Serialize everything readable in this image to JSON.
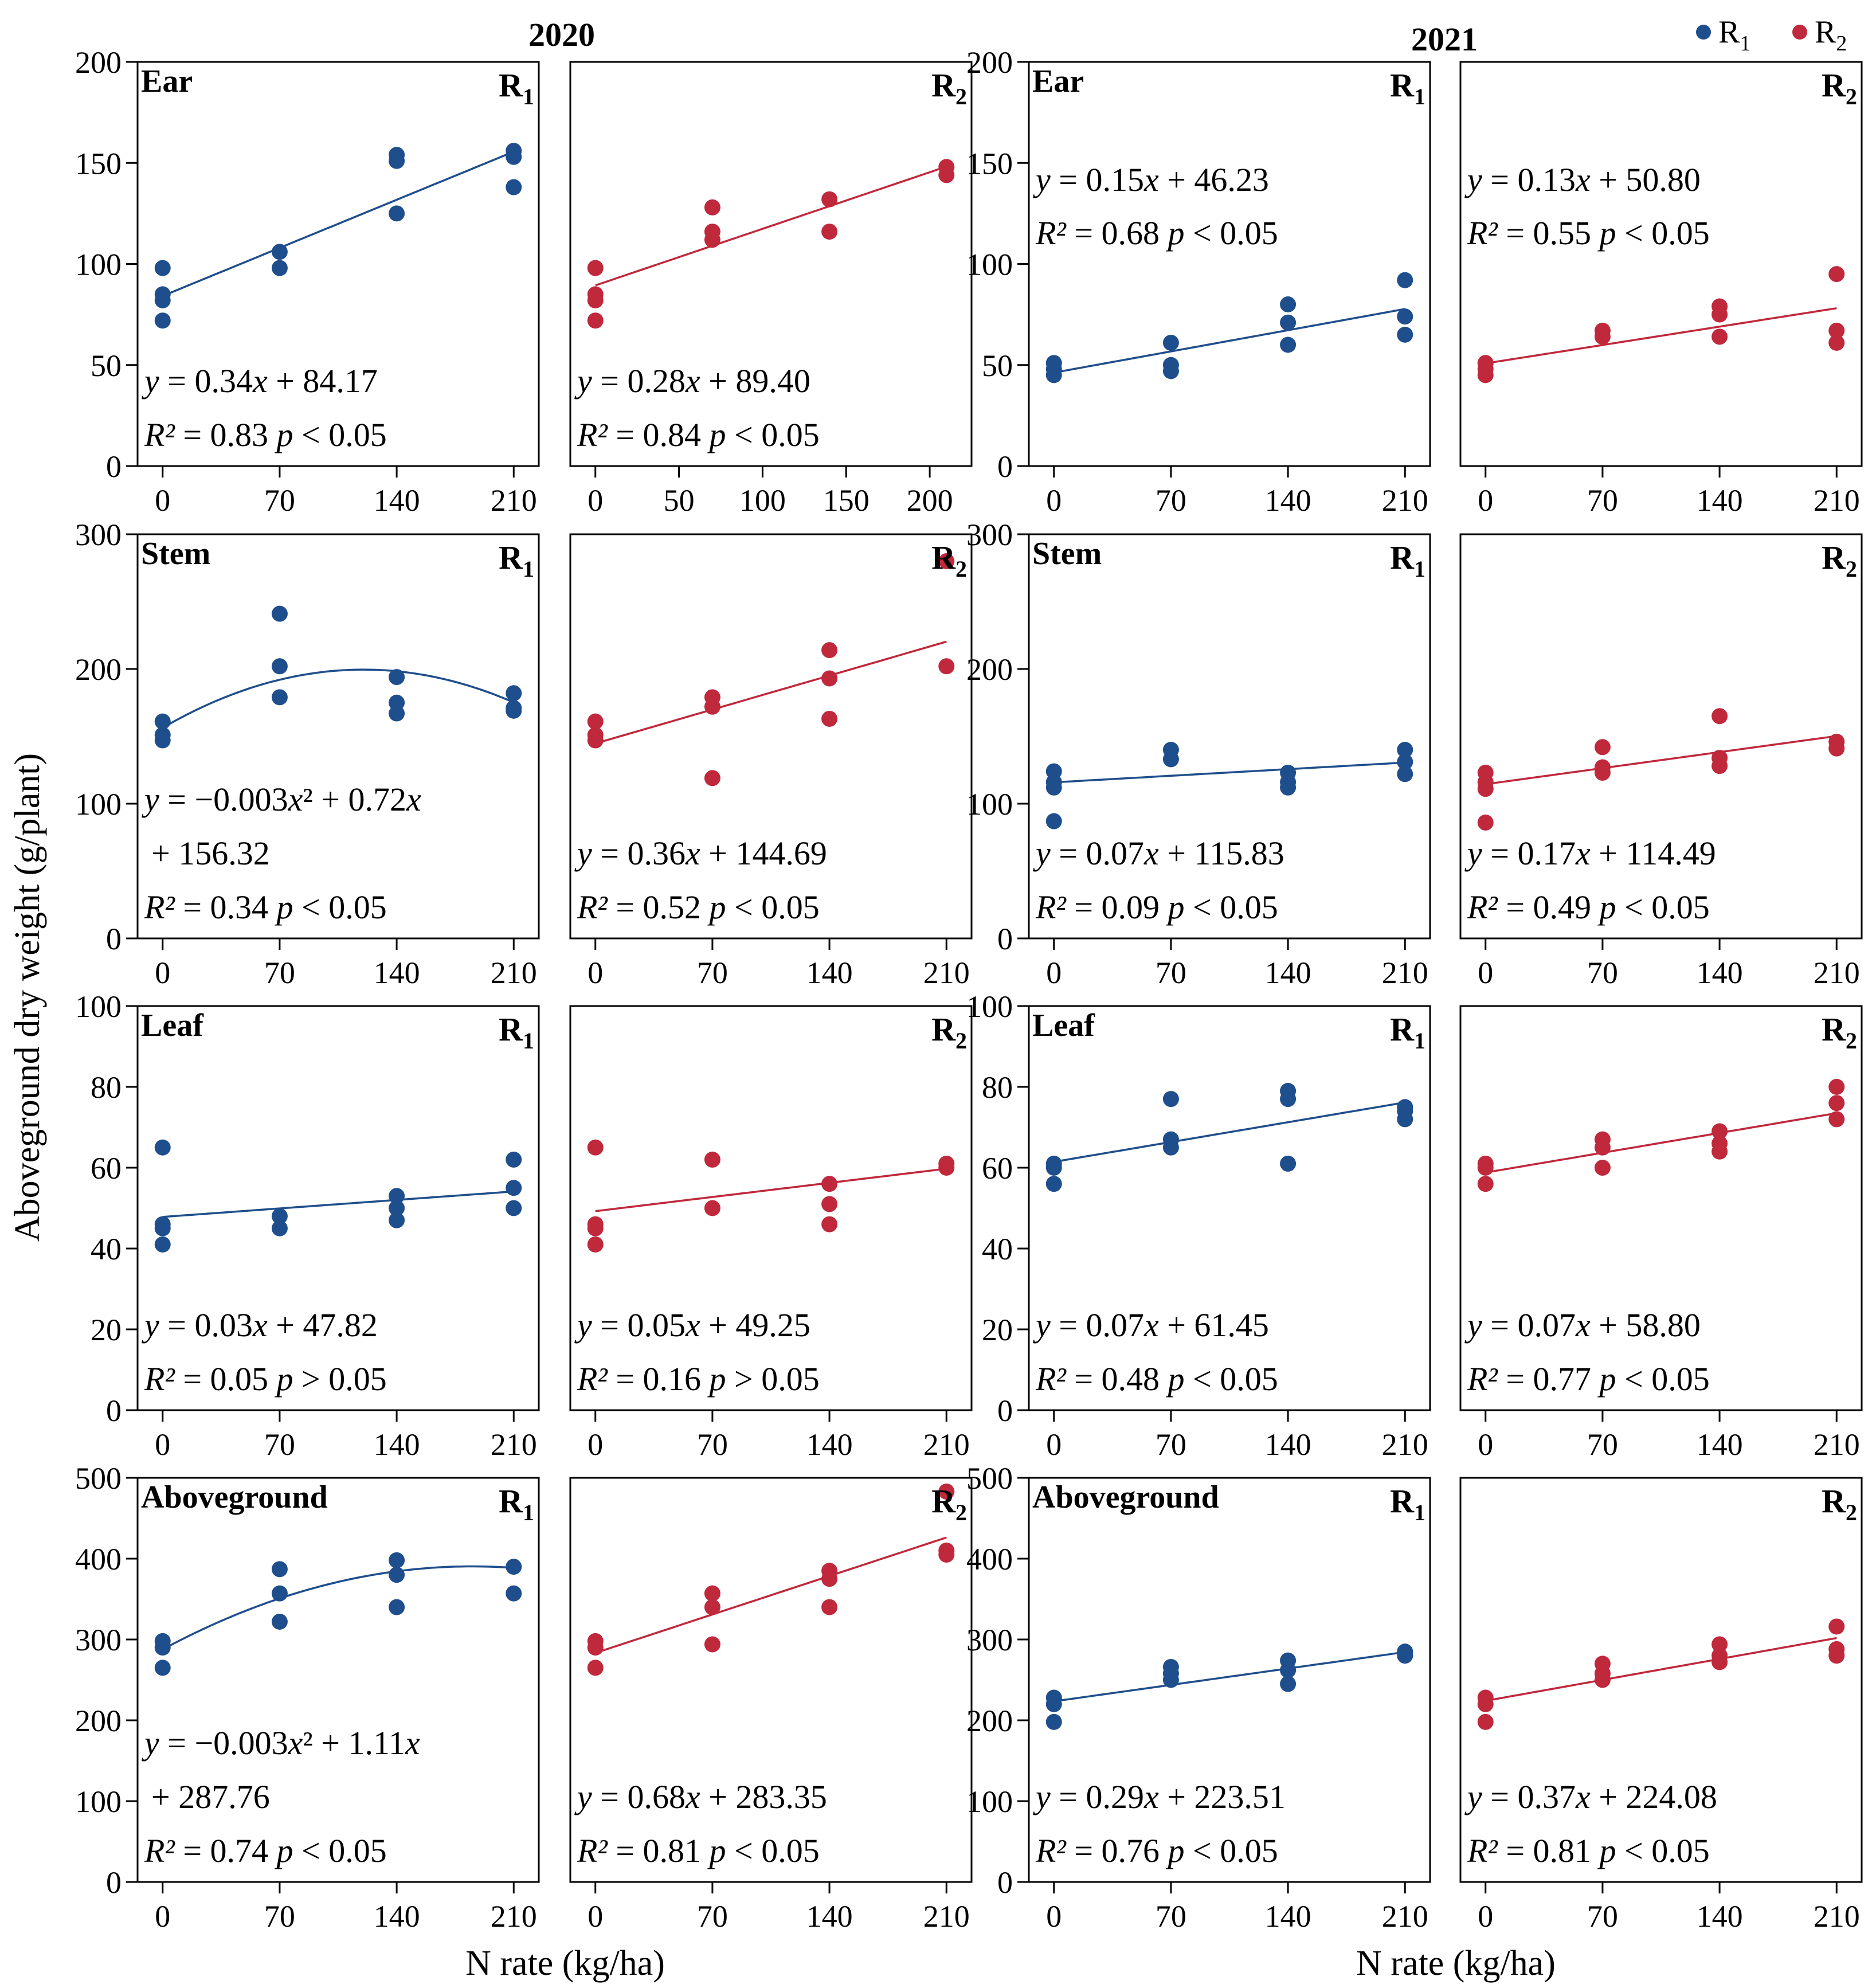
{
  "colors": {
    "R1": "#1f4e8c",
    "R2": "#c0283c",
    "axis": "#000000"
  },
  "figure": {
    "years": [
      "2020",
      "2021"
    ],
    "y_axis_label": "Aboveground dry weight  (g/plant)",
    "x_axis_label": "N rate (kg/ha)",
    "legend": [
      {
        "key": "R1",
        "base": "R",
        "sub": "1"
      },
      {
        "key": "R2",
        "base": "R",
        "sub": "2"
      }
    ]
  },
  "chart_data": [
    {
      "id": "ear-2020-r1",
      "type": "scatter",
      "title": "Ear",
      "series": "R1",
      "year": "2020",
      "xlim": [
        -15,
        225
      ],
      "ylim": [
        0,
        200
      ],
      "xticks": [
        0,
        70,
        140,
        210
      ],
      "yticks": [
        0,
        50,
        100,
        150,
        200
      ],
      "points": [
        [
          0,
          98
        ],
        [
          0,
          85
        ],
        [
          0,
          82
        ],
        [
          0,
          72
        ],
        [
          70,
          106
        ],
        [
          70,
          98
        ],
        [
          140,
          154
        ],
        [
          140,
          151
        ],
        [
          140,
          125
        ],
        [
          210,
          156
        ],
        [
          210,
          153
        ],
        [
          210,
          138
        ]
      ],
      "fit": {
        "kind": "linear",
        "a": 0.34,
        "b": 84.17
      },
      "eq": [
        "y = 0.34x + 84.17"
      ],
      "r2": "R² = 0.83  p < 0.05",
      "eq_pos": "bottom"
    },
    {
      "id": "ear-2020-r2",
      "type": "scatter",
      "title": "",
      "series": "R2",
      "year": "2020",
      "xlim": [
        -15,
        225
      ],
      "ylim": [
        0,
        200
      ],
      "xticks": [
        0,
        50,
        100,
        150,
        200
      ],
      "yticks": [
        0,
        50,
        100,
        150,
        200
      ],
      "points": [
        [
          0,
          98
        ],
        [
          0,
          85
        ],
        [
          0,
          82
        ],
        [
          0,
          72
        ],
        [
          70,
          128
        ],
        [
          70,
          116
        ],
        [
          70,
          112
        ],
        [
          140,
          132
        ],
        [
          140,
          116
        ],
        [
          210,
          148
        ],
        [
          210,
          144
        ]
      ],
      "fit": {
        "kind": "linear",
        "a": 0.28,
        "b": 89.4
      },
      "eq": [
        "y = 0.28x + 89.40"
      ],
      "r2": "R² = 0.84  p < 0.05",
      "eq_pos": "bottom"
    },
    {
      "id": "ear-2021-r1",
      "type": "scatter",
      "title": "Ear",
      "series": "R1",
      "year": "2021",
      "xlim": [
        -15,
        225
      ],
      "ylim": [
        0,
        200
      ],
      "xticks": [
        0,
        70,
        140,
        210
      ],
      "yticks": [
        0,
        50,
        100,
        150,
        200
      ],
      "points": [
        [
          0,
          51
        ],
        [
          0,
          48
        ],
        [
          0,
          45
        ],
        [
          70,
          61
        ],
        [
          70,
          50
        ],
        [
          70,
          47
        ],
        [
          140,
          80
        ],
        [
          140,
          71
        ],
        [
          140,
          60
        ],
        [
          210,
          92
        ],
        [
          210,
          74
        ],
        [
          210,
          65
        ]
      ],
      "fit": {
        "kind": "linear",
        "a": 0.15,
        "b": 46.23
      },
      "eq": [
        "y = 0.15x + 46.23"
      ],
      "r2": "R² = 0.68  p < 0.05",
      "eq_pos": "top"
    },
    {
      "id": "ear-2021-r2",
      "type": "scatter",
      "title": "",
      "series": "R2",
      "year": "2021",
      "xlim": [
        -15,
        225
      ],
      "ylim": [
        0,
        200
      ],
      "xticks": [
        0,
        70,
        140,
        210
      ],
      "yticks": [
        0,
        50,
        100,
        150,
        200
      ],
      "points": [
        [
          0,
          51
        ],
        [
          0,
          48
        ],
        [
          0,
          45
        ],
        [
          70,
          67
        ],
        [
          70,
          64
        ],
        [
          140,
          79
        ],
        [
          140,
          75
        ],
        [
          140,
          64
        ],
        [
          210,
          95
        ],
        [
          210,
          67
        ],
        [
          210,
          61
        ]
      ],
      "fit": {
        "kind": "linear",
        "a": 0.13,
        "b": 50.8
      },
      "eq": [
        "y = 0.13x + 50.80"
      ],
      "r2": "R² = 0.55  p < 0.05",
      "eq_pos": "top"
    },
    {
      "id": "stem-2020-r1",
      "type": "scatter",
      "title": "Stem",
      "series": "R1",
      "year": "2020",
      "xlim": [
        -15,
        225
      ],
      "ylim": [
        0,
        300
      ],
      "xticks": [
        0,
        70,
        140,
        210
      ],
      "yticks": [
        0,
        100,
        200,
        300
      ],
      "points": [
        [
          0,
          161
        ],
        [
          0,
          151
        ],
        [
          0,
          147
        ],
        [
          70,
          241
        ],
        [
          70,
          202
        ],
        [
          70,
          179
        ],
        [
          140,
          194
        ],
        [
          140,
          175
        ],
        [
          140,
          167
        ],
        [
          210,
          182
        ],
        [
          210,
          171
        ],
        [
          210,
          169
        ]
      ],
      "fit": {
        "kind": "quadratic",
        "c2": -0.003,
        "a": 0.72,
        "b": 156.32
      },
      "eq": [
        "y = −0.003x² + 0.72x",
        "+ 156.32"
      ],
      "r2": "R² = 0.34  p < 0.05",
      "eq_pos": "bottom"
    },
    {
      "id": "stem-2020-r2",
      "type": "scatter",
      "title": "",
      "series": "R2",
      "year": "2020",
      "xlim": [
        -15,
        225
      ],
      "ylim": [
        0,
        300
      ],
      "xticks": [
        0,
        70,
        140,
        210
      ],
      "yticks": [
        0,
        100,
        200,
        300
      ],
      "points": [
        [
          0,
          161
        ],
        [
          0,
          151
        ],
        [
          0,
          147
        ],
        [
          70,
          179
        ],
        [
          70,
          172
        ],
        [
          70,
          119
        ],
        [
          140,
          214
        ],
        [
          140,
          193
        ],
        [
          140,
          163
        ],
        [
          210,
          280
        ],
        [
          210,
          202
        ]
      ],
      "fit": {
        "kind": "linear",
        "a": 0.36,
        "b": 144.69
      },
      "eq": [
        "y = 0.36x + 144.69"
      ],
      "r2": "R² = 0.52  p < 0.05",
      "eq_pos": "bottom"
    },
    {
      "id": "stem-2021-r1",
      "type": "scatter",
      "title": "Stem",
      "series": "R1",
      "year": "2021",
      "xlim": [
        -15,
        225
      ],
      "ylim": [
        0,
        300
      ],
      "xticks": [
        0,
        70,
        140,
        210
      ],
      "yticks": [
        0,
        100,
        200,
        300
      ],
      "points": [
        [
          0,
          124
        ],
        [
          0,
          116
        ],
        [
          0,
          112
        ],
        [
          0,
          87
        ],
        [
          70,
          140
        ],
        [
          70,
          133
        ],
        [
          140,
          123
        ],
        [
          140,
          116
        ],
        [
          140,
          112
        ],
        [
          210,
          140
        ],
        [
          210,
          131
        ],
        [
          210,
          122
        ]
      ],
      "fit": {
        "kind": "linear",
        "a": 0.07,
        "b": 115.83
      },
      "eq": [
        "y = 0.07x + 115.83"
      ],
      "r2": "R² = 0.09  p < 0.05",
      "eq_pos": "bottom"
    },
    {
      "id": "stem-2021-r2",
      "type": "scatter",
      "title": "",
      "series": "R2",
      "year": "2021",
      "xlim": [
        -15,
        225
      ],
      "ylim": [
        0,
        300
      ],
      "xticks": [
        0,
        70,
        140,
        210
      ],
      "yticks": [
        0,
        100,
        200,
        300
      ],
      "points": [
        [
          0,
          123
        ],
        [
          0,
          116
        ],
        [
          0,
          111
        ],
        [
          0,
          86
        ],
        [
          70,
          142
        ],
        [
          70,
          127
        ],
        [
          70,
          123
        ],
        [
          140,
          165
        ],
        [
          140,
          134
        ],
        [
          140,
          128
        ],
        [
          210,
          146
        ],
        [
          210,
          141
        ]
      ],
      "fit": {
        "kind": "linear",
        "a": 0.17,
        "b": 114.49
      },
      "eq": [
        "y = 0.17x + 114.49"
      ],
      "r2": "R² = 0.49  p < 0.05",
      "eq_pos": "bottom"
    },
    {
      "id": "leaf-2020-r1",
      "type": "scatter",
      "title": "Leaf",
      "series": "R1",
      "year": "2020",
      "xlim": [
        -15,
        225
      ],
      "ylim": [
        0,
        100
      ],
      "xticks": [
        0,
        70,
        140,
        210
      ],
      "yticks": [
        0,
        20,
        40,
        60,
        80,
        100
      ],
      "points": [
        [
          0,
          65
        ],
        [
          0,
          46
        ],
        [
          0,
          45
        ],
        [
          0,
          41
        ],
        [
          70,
          48
        ],
        [
          70,
          45
        ],
        [
          140,
          53
        ],
        [
          140,
          50
        ],
        [
          140,
          47
        ],
        [
          210,
          62
        ],
        [
          210,
          55
        ],
        [
          210,
          50
        ]
      ],
      "fit": {
        "kind": "linear",
        "a": 0.03,
        "b": 47.82
      },
      "eq": [
        "y = 0.03x + 47.82"
      ],
      "r2": "R² = 0.05  p > 0.05",
      "eq_pos": "bottom"
    },
    {
      "id": "leaf-2020-r2",
      "type": "scatter",
      "title": "",
      "series": "R2",
      "year": "2020",
      "xlim": [
        -15,
        225
      ],
      "ylim": [
        0,
        100
      ],
      "xticks": [
        0,
        70,
        140,
        210
      ],
      "yticks": [
        0,
        20,
        40,
        60,
        80,
        100
      ],
      "points": [
        [
          0,
          65
        ],
        [
          0,
          46
        ],
        [
          0,
          45
        ],
        [
          0,
          41
        ],
        [
          70,
          62
        ],
        [
          70,
          50
        ],
        [
          140,
          56
        ],
        [
          140,
          51
        ],
        [
          140,
          46
        ],
        [
          210,
          61
        ],
        [
          210,
          60
        ]
      ],
      "fit": {
        "kind": "linear",
        "a": 0.05,
        "b": 49.25
      },
      "eq": [
        "y = 0.05x + 49.25"
      ],
      "r2": "R² = 0.16  p > 0.05",
      "eq_pos": "bottom"
    },
    {
      "id": "leaf-2021-r1",
      "type": "scatter",
      "title": "Leaf",
      "series": "R1",
      "year": "2021",
      "xlim": [
        -15,
        225
      ],
      "ylim": [
        0,
        100
      ],
      "xticks": [
        0,
        70,
        140,
        210
      ],
      "yticks": [
        0,
        20,
        40,
        60,
        80,
        100
      ],
      "points": [
        [
          0,
          61
        ],
        [
          0,
          60
        ],
        [
          0,
          56
        ],
        [
          70,
          77
        ],
        [
          70,
          67
        ],
        [
          70,
          65
        ],
        [
          140,
          79
        ],
        [
          140,
          77
        ],
        [
          140,
          61
        ],
        [
          210,
          75
        ],
        [
          210,
          74
        ],
        [
          210,
          72
        ]
      ],
      "fit": {
        "kind": "linear",
        "a": 0.07,
        "b": 61.45
      },
      "eq": [
        "y = 0.07x + 61.45"
      ],
      "r2": "R² = 0.48  p < 0.05",
      "eq_pos": "bottom"
    },
    {
      "id": "leaf-2021-r2",
      "type": "scatter",
      "title": "",
      "series": "R2",
      "year": "2021",
      "xlim": [
        -15,
        225
      ],
      "ylim": [
        0,
        100
      ],
      "xticks": [
        0,
        70,
        140,
        210
      ],
      "yticks": [
        0,
        20,
        40,
        60,
        80,
        100
      ],
      "points": [
        [
          0,
          61
        ],
        [
          0,
          60
        ],
        [
          0,
          56
        ],
        [
          70,
          67
        ],
        [
          70,
          65
        ],
        [
          70,
          60
        ],
        [
          140,
          69
        ],
        [
          140,
          66
        ],
        [
          140,
          64
        ],
        [
          210,
          80
        ],
        [
          210,
          76
        ],
        [
          210,
          72
        ]
      ],
      "fit": {
        "kind": "linear",
        "a": 0.07,
        "b": 58.8
      },
      "eq": [
        "y = 0.07x + 58.80"
      ],
      "r2": "R² = 0.77  p < 0.05",
      "eq_pos": "bottom"
    },
    {
      "id": "abg-2020-r1",
      "type": "scatter",
      "title": "Aboveground",
      "series": "R1",
      "year": "2020",
      "xlim": [
        -15,
        225
      ],
      "ylim": [
        0,
        500
      ],
      "xticks": [
        0,
        70,
        140,
        210
      ],
      "yticks": [
        0,
        100,
        200,
        300,
        400,
        500
      ],
      "points": [
        [
          0,
          298
        ],
        [
          0,
          290
        ],
        [
          0,
          265
        ],
        [
          70,
          387
        ],
        [
          70,
          357
        ],
        [
          70,
          322
        ],
        [
          140,
          398
        ],
        [
          140,
          380
        ],
        [
          140,
          340
        ],
        [
          210,
          390
        ],
        [
          210,
          357
        ]
      ],
      "fit": {
        "kind": "quadratic",
        "c2": -0.003,
        "a": 1.11,
        "b": 287.76
      },
      "eq": [
        "y = −0.003x² + 1.11x",
        "+ 287.76"
      ],
      "r2": "R² = 0.74  p < 0.05",
      "eq_pos": "bottom"
    },
    {
      "id": "abg-2020-r2",
      "type": "scatter",
      "title": "",
      "series": "R2",
      "year": "2020",
      "xlim": [
        -15,
        225
      ],
      "ylim": [
        0,
        500
      ],
      "xticks": [
        0,
        70,
        140,
        210
      ],
      "yticks": [
        0,
        100,
        200,
        300,
        400,
        500
      ],
      "points": [
        [
          0,
          298
        ],
        [
          0,
          290
        ],
        [
          0,
          265
        ],
        [
          70,
          357
        ],
        [
          70,
          340
        ],
        [
          70,
          294
        ],
        [
          140,
          385
        ],
        [
          140,
          375
        ],
        [
          140,
          340
        ],
        [
          210,
          483
        ],
        [
          210,
          410
        ],
        [
          210,
          405
        ]
      ],
      "fit": {
        "kind": "linear",
        "a": 0.68,
        "b": 283.35
      },
      "eq": [
        "y = 0.68x + 283.35"
      ],
      "r2": "R² = 0.81  p < 0.05",
      "eq_pos": "bottom"
    },
    {
      "id": "abg-2021-r1",
      "type": "scatter",
      "title": "Aboveground",
      "series": "R1",
      "year": "2021",
      "xlim": [
        -15,
        225
      ],
      "ylim": [
        0,
        500
      ],
      "xticks": [
        0,
        70,
        140,
        210
      ],
      "yticks": [
        0,
        100,
        200,
        300,
        400,
        500
      ],
      "points": [
        [
          0,
          228
        ],
        [
          0,
          220
        ],
        [
          0,
          198
        ],
        [
          70,
          266
        ],
        [
          70,
          258
        ],
        [
          70,
          250
        ],
        [
          140,
          274
        ],
        [
          140,
          262
        ],
        [
          140,
          245
        ],
        [
          210,
          285
        ],
        [
          210,
          280
        ]
      ],
      "fit": {
        "kind": "linear",
        "a": 0.29,
        "b": 223.51
      },
      "eq": [
        "y = 0.29x + 223.51"
      ],
      "r2": "R² = 0.76  p < 0.05",
      "eq_pos": "bottom"
    },
    {
      "id": "abg-2021-r2",
      "type": "scatter",
      "title": "",
      "series": "R2",
      "year": "2021",
      "xlim": [
        -15,
        225
      ],
      "ylim": [
        0,
        500
      ],
      "xticks": [
        0,
        70,
        140,
        210
      ],
      "yticks": [
        0,
        100,
        200,
        300,
        400,
        500
      ],
      "points": [
        [
          0,
          228
        ],
        [
          0,
          220
        ],
        [
          0,
          198
        ],
        [
          70,
          270
        ],
        [
          70,
          258
        ],
        [
          70,
          250
        ],
        [
          140,
          294
        ],
        [
          140,
          280
        ],
        [
          140,
          272
        ],
        [
          210,
          316
        ],
        [
          210,
          288
        ],
        [
          210,
          280
        ]
      ],
      "fit": {
        "kind": "linear",
        "a": 0.37,
        "b": 224.08
      },
      "eq": [
        "y = 0.37x + 224.08"
      ],
      "r2": "R² = 0.81  p < 0.05",
      "eq_pos": "bottom"
    }
  ]
}
